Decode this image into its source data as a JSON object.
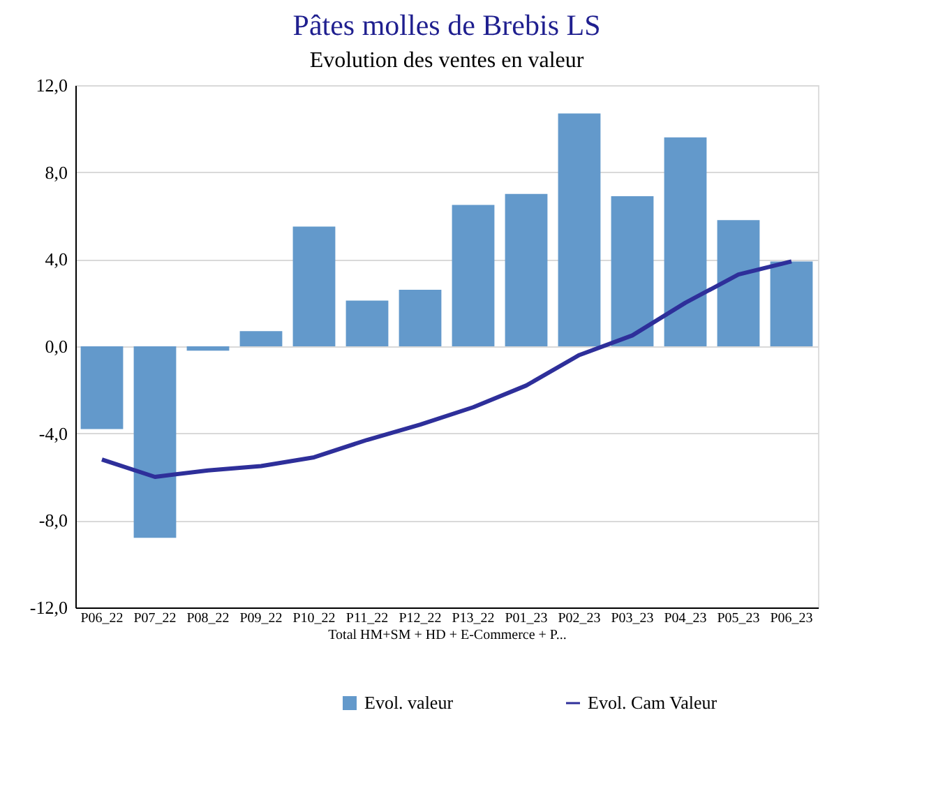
{
  "chart_data": {
    "type": "bar",
    "title": "Pâtes molles de Brebis LS",
    "subtitle": "Evolution des ventes en valeur",
    "xlabel": "Total HM+SM + HD + E-Commerce + P...",
    "categories": [
      "P06_22",
      "P07_22",
      "P08_22",
      "P09_22",
      "P10_22",
      "P11_22",
      "P12_22",
      "P13_22",
      "P01_23",
      "P02_23",
      "P03_23",
      "P04_23",
      "P05_23",
      "P06_23"
    ],
    "series": [
      {
        "name": "Evol.  valeur",
        "color": "#6399cb",
        "values": [
          -3.8,
          -8.8,
          -0.2,
          0.7,
          5.5,
          2.1,
          2.6,
          6.5,
          7.0,
          10.7,
          6.9,
          9.6,
          5.8,
          3.9
        ]
      },
      {
        "name": "Evol. Cam Valeur",
        "type": "line",
        "color": "#2e2f9a",
        "values": [
          -5.2,
          -6.0,
          -5.7,
          -5.5,
          -5.1,
          -4.3,
          -3.6,
          -2.8,
          -1.8,
          -0.4,
          0.5,
          2.0,
          3.3,
          3.9
        ]
      }
    ],
    "ylim": [
      -12,
      12
    ],
    "yticks": [
      {
        "value": -12,
        "label": "-12,0"
      },
      {
        "value": -8,
        "label": "-8,0"
      },
      {
        "value": -4,
        "label": "-4,0"
      },
      {
        "value": 0,
        "label": "0,0"
      },
      {
        "value": 4,
        "label": "4,0"
      },
      {
        "value": 8,
        "label": "8,0"
      },
      {
        "value": 12,
        "label": "12,0"
      }
    ],
    "grid": "y",
    "legend": "bottom",
    "marker": "none",
    "line_style": "solid"
  }
}
